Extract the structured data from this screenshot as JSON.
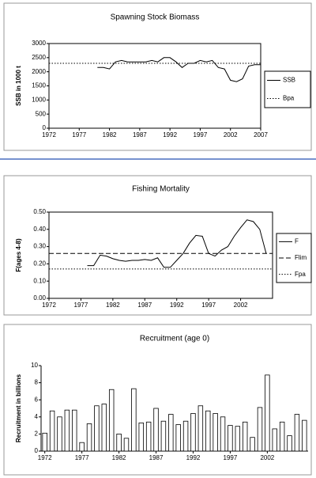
{
  "chart_data": [
    {
      "type": "line",
      "title": "Spawning Stock Biomass",
      "y_label": "SSB in 1000 t",
      "xlim": [
        1972,
        2007
      ],
      "xticks": [
        1972,
        1977,
        1982,
        1987,
        1992,
        1997,
        2002,
        2007
      ],
      "ylim": [
        0,
        3000
      ],
      "yticks": [
        0,
        500,
        1000,
        1500,
        2000,
        2500,
        3000
      ],
      "legend": "right",
      "series": [
        {
          "name": "SSB",
          "color": "#000000",
          "dash": "solid",
          "x": [
            1980,
            1981,
            1982,
            1983,
            1984,
            1985,
            1986,
            1987,
            1988,
            1989,
            1990,
            1991,
            1992,
            1993,
            1994,
            1995,
            1996,
            1997,
            1998,
            1999,
            2000,
            2001,
            2002,
            2003,
            2004,
            2005,
            2006,
            2007
          ],
          "values": [
            2150,
            2150,
            2100,
            2350,
            2400,
            2350,
            2350,
            2350,
            2350,
            2400,
            2350,
            2500,
            2500,
            2350,
            2150,
            2300,
            2300,
            2400,
            2350,
            2400,
            2150,
            2100,
            1700,
            1650,
            1750,
            2200,
            2250,
            2250
          ]
        },
        {
          "name": "Bpa",
          "color": "#000000",
          "dash": "dotted",
          "x": [
            1972,
            2007
          ],
          "values": [
            2300,
            2300
          ]
        }
      ]
    },
    {
      "type": "line",
      "title": "Fishing Mortality",
      "y_label": "F(ages 4-8)",
      "xlim": [
        1972,
        2007
      ],
      "xticks": [
        1972,
        1977,
        1982,
        1987,
        1992,
        1997,
        2002
      ],
      "ylim": [
        0,
        0.5
      ],
      "yticks": [
        {
          "value": 0,
          "label": "0.00"
        },
        {
          "value": 0.1,
          "label": "0.10"
        },
        {
          "value": 0.2,
          "label": "0.20"
        },
        {
          "value": 0.3,
          "label": "0.30"
        },
        {
          "value": 0.4,
          "label": "0.40"
        },
        {
          "value": 0.5,
          "label": "0.50"
        }
      ],
      "legend": "right",
      "series": [
        {
          "name": "F",
          "color": "#000000",
          "dash": "solid",
          "x": [
            1978,
            1979,
            1980,
            1981,
            1982,
            1983,
            1984,
            1985,
            1986,
            1987,
            1988,
            1989,
            1990,
            1991,
            1992,
            1993,
            1994,
            1995,
            1996,
            1997,
            1998,
            1999,
            2000,
            2001,
            2002,
            2003,
            2004,
            2005,
            2006
          ],
          "values": [
            0.19,
            0.19,
            0.25,
            0.245,
            0.23,
            0.22,
            0.215,
            0.22,
            0.22,
            0.225,
            0.22,
            0.235,
            0.18,
            0.18,
            0.22,
            0.26,
            0.32,
            0.365,
            0.36,
            0.26,
            0.245,
            0.28,
            0.3,
            0.36,
            0.41,
            0.455,
            0.445,
            0.4,
            0.26
          ]
        },
        {
          "name": "Flim",
          "color": "#000000",
          "dash": "dashed",
          "x": [
            1972,
            2007
          ],
          "values": [
            0.26,
            0.26
          ]
        },
        {
          "name": "Fpa",
          "color": "#000000",
          "dash": "dotted",
          "x": [
            1972,
            2007
          ],
          "values": [
            0.17,
            0.17
          ]
        }
      ]
    },
    {
      "type": "bar",
      "title": "Recruitment (age 0)",
      "y_label": "Recruitment in billions",
      "categories": [
        "1972",
        null,
        null,
        null,
        null,
        "1977",
        null,
        null,
        null,
        null,
        "1982",
        null,
        null,
        null,
        null,
        "1987",
        null,
        null,
        null,
        null,
        "1992",
        null,
        null,
        null,
        null,
        "1997",
        null,
        null,
        null,
        null,
        "2002",
        null,
        null,
        null,
        null,
        null
      ],
      "values": [
        2.1,
        4.7,
        4.0,
        4.8,
        4.8,
        1.0,
        3.2,
        5.3,
        5.5,
        7.2,
        2.0,
        1.5,
        7.3,
        3.3,
        3.4,
        5.0,
        3.5,
        4.3,
        3.1,
        3.5,
        4.4,
        5.3,
        4.7,
        4.4,
        4.0,
        3.0,
        2.9,
        3.4,
        1.6,
        5.1,
        8.9,
        2.6,
        3.4,
        1.8,
        4.3,
        3.6
      ],
      "color": "#ffffff",
      "ylim": [
        0,
        10
      ],
      "yticks": [
        0,
        2,
        4,
        6,
        8,
        10
      ]
    }
  ]
}
